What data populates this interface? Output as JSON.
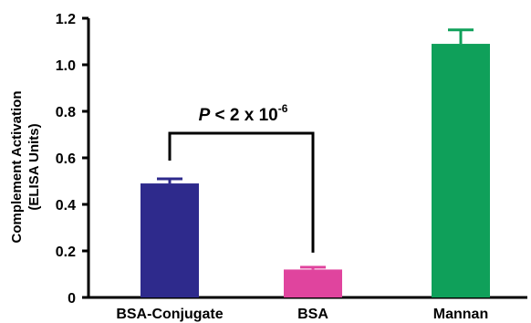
{
  "chart_data": {
    "type": "bar",
    "categories": [
      "BSA-Conjugate",
      "BSA",
      "Mannan"
    ],
    "values": [
      0.49,
      0.12,
      1.09
    ],
    "error_upper": [
      0.51,
      0.13,
      1.15
    ],
    "colors": [
      "#2e2a8c",
      "#e0449e",
      "#0fa05a"
    ],
    "ylabel_line1": "Complement Activation",
    "ylabel_line2": "(ELISA Units)",
    "ylim": [
      0,
      1.2
    ],
    "yticks": [
      "0",
      "0.2",
      "0.4",
      "0.6",
      "0.8",
      "1.0",
      "1.2"
    ],
    "annotation": {
      "p_symbol": "P",
      "text": " < 2 x 10",
      "exponent": "-6",
      "between": [
        "BSA-Conjugate",
        "BSA"
      ]
    }
  }
}
